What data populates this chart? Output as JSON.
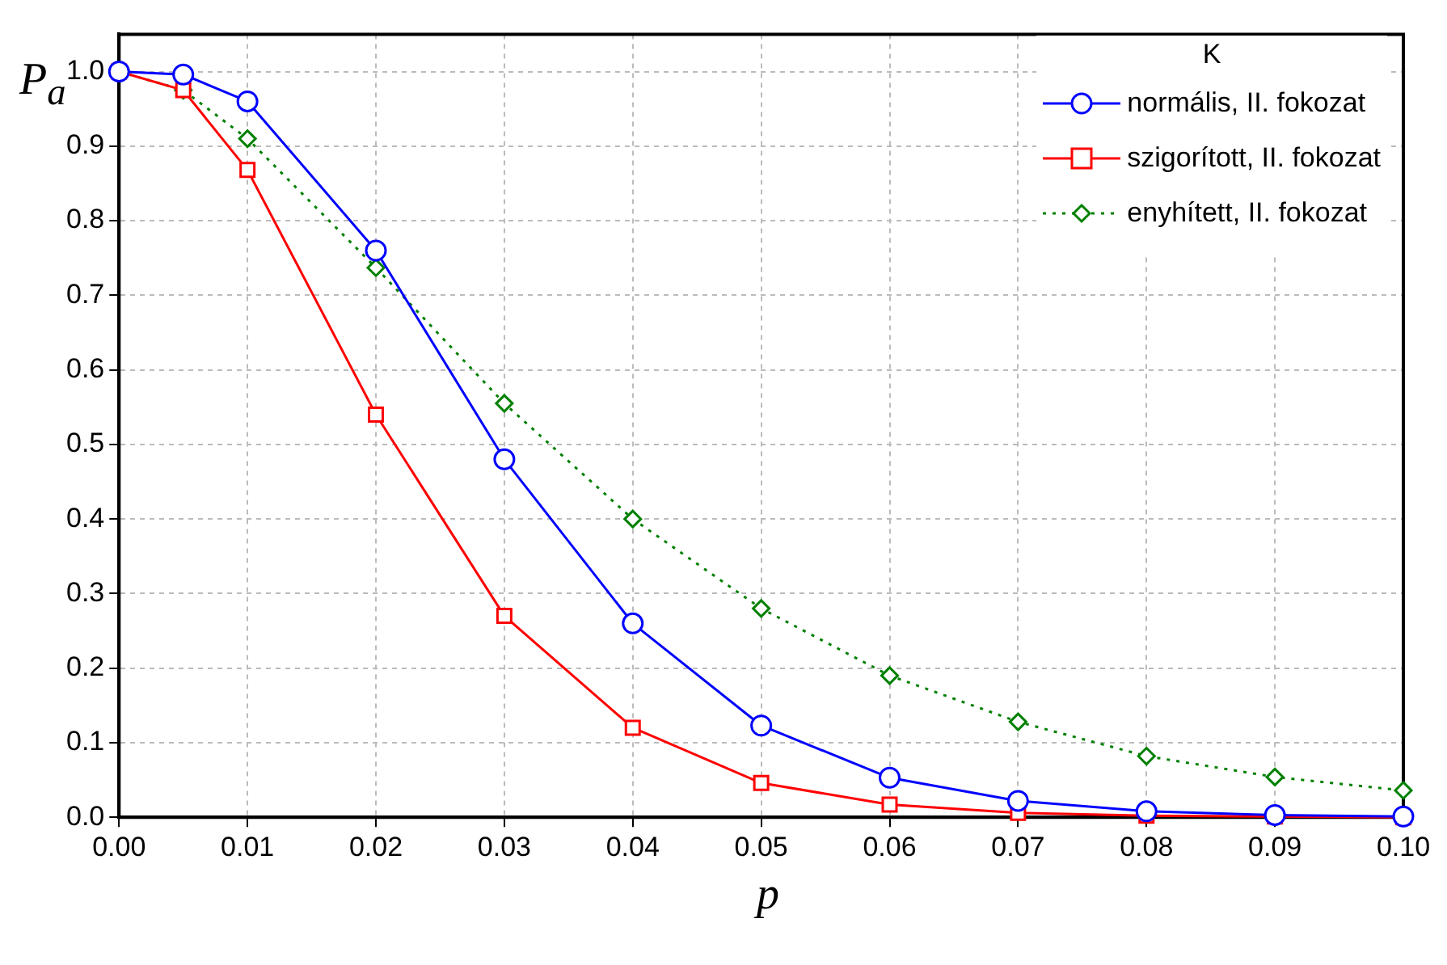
{
  "chart_data": {
    "type": "line",
    "xlabel": "p",
    "ylabel": "P$_{a}$",
    "legend_title": "K",
    "legend": "top right",
    "grid": true,
    "x": [
      0,
      0.005,
      0.01,
      0.02,
      0.03,
      0.04,
      0.05,
      0.06,
      0.07,
      0.08,
      0.09,
      0.1
    ],
    "xlim": [
      0,
      0.1
    ],
    "xticks": [
      {
        "value": 0,
        "label": "0.00"
      },
      0.01,
      0.02,
      0.03,
      0.04,
      0.05,
      0.06,
      0.07,
      0.08,
      0.09,
      {
        "value": 0.1,
        "label": "0.10"
      }
    ],
    "ylim": [
      0,
      1.05
    ],
    "yticks": [
      {
        "value": 0,
        "label": "0.0"
      },
      0.1,
      0.2,
      0.3,
      0.4,
      0.5,
      0.6,
      0.7,
      0.8,
      0.9,
      {
        "value": 1,
        "label": "1.0"
      }
    ],
    "series": [
      {
        "name": "normális, II. fokozat",
        "color": "#0000ff",
        "marker": "circle",
        "line_style": "solid",
        "values": [
          1,
          0.996,
          0.96,
          0.76,
          0.48,
          0.26,
          0.123,
          0.053,
          0.022,
          0.008,
          0.003,
          0.001
        ]
      },
      {
        "name": "szigorított, II. fokozat",
        "color": "#ff0000",
        "marker": "square",
        "line_style": "solid",
        "values": [
          1,
          0.975,
          0.868,
          0.54,
          0.27,
          0.12,
          0.046,
          0.017,
          0.006,
          0.002,
          0.001,
          0
        ]
      },
      {
        "name": "enyhített, II. fokozat",
        "color": "#008000",
        "marker": "diamond",
        "line_style": "dotted",
        "values": [
          1,
          0.975,
          0.91,
          0.737,
          0.555,
          0.4,
          0.28,
          0.19,
          0.128,
          0.082,
          0.054,
          0.036
        ]
      }
    ]
  }
}
